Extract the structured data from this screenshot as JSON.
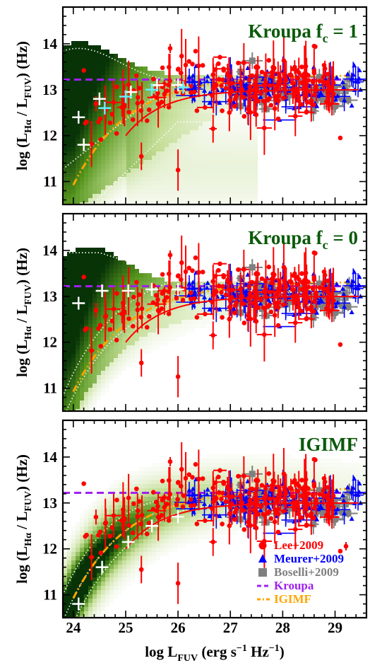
{
  "chart_data": [
    {
      "type": "scatter",
      "panel_label": "Kroupa f",
      "panel_label_sub": "c",
      "panel_label_tail": " = 1",
      "model": "kroupa1",
      "xlim": [
        23.8,
        29.6
      ],
      "ylim": [
        10.5,
        14.8
      ],
      "yticks": [
        11,
        12,
        13,
        14
      ],
      "ylabel": {
        "main": "log (L",
        "sub1": "Hα",
        "mid": " / L",
        "sub2": "FUV",
        "tail": ") (Hz)"
      },
      "grid": false
    },
    {
      "type": "scatter",
      "panel_label": "Kroupa f",
      "panel_label_sub": "c",
      "panel_label_tail": " = 0",
      "model": "kroupa0",
      "xlim": [
        23.8,
        29.6
      ],
      "ylim": [
        10.5,
        14.8
      ],
      "yticks": [
        11,
        12,
        13,
        14
      ],
      "ylabel": {
        "main": "log (L",
        "sub1": "Hα",
        "mid": " / L",
        "sub2": "FUV",
        "tail": ") (Hz)"
      },
      "grid": false
    },
    {
      "type": "scatter",
      "panel_label": "IGIMF",
      "panel_label_sub": "",
      "panel_label_tail": "",
      "model": "igimf",
      "xlim": [
        23.8,
        29.6
      ],
      "ylim": [
        10.5,
        14.8
      ],
      "yticks": [
        11,
        12,
        13,
        14
      ],
      "xticks": [
        24,
        25,
        26,
        27,
        28,
        29
      ],
      "ylabel": {
        "main": "log (L",
        "sub1": "Hα",
        "mid": " / L",
        "sub2": "FUV",
        "tail": ") (Hz)"
      },
      "xlabel": {
        "main": "log L",
        "sub": "FUV",
        "tail": " (erg s",
        "sup1": "−1",
        "tail2": " Hz",
        "sup2": "−1",
        "end": ")"
      },
      "legend_position": "lower-right",
      "grid": false
    }
  ],
  "series": {
    "kroupa_line": {
      "name": "Kroupa",
      "y": 13.22,
      "color": "#a020f0"
    },
    "igimf_line": {
      "name": "IGIMF",
      "color": "#ffa500"
    },
    "lee": {
      "name": "Lee+2009",
      "color": "#ff0000"
    },
    "meurer": {
      "name": "Meurer+2009",
      "color": "#0000ff"
    },
    "boselli": {
      "name": "Boselli+2009",
      "color": "#808080"
    }
  },
  "binned_points": {
    "kroupa1": {
      "white": [
        [
          24.1,
          12.4
        ],
        [
          24.5,
          12.8
        ],
        [
          25.1,
          12.95
        ],
        [
          25.6,
          13.1
        ],
        [
          26.0,
          13.1
        ],
        [
          24.2,
          11.8
        ]
      ],
      "cyan": [
        [
          24.6,
          12.6
        ],
        [
          25.0,
          12.85
        ],
        [
          25.5,
          13.0
        ],
        [
          26.1,
          13.05
        ]
      ]
    },
    "kroupa0": {
      "white": [
        [
          24.1,
          12.85
        ],
        [
          24.55,
          13.12
        ],
        [
          25.05,
          13.12
        ],
        [
          25.5,
          13.15
        ],
        [
          26.0,
          13.15
        ]
      ],
      "cyan": []
    },
    "igimf": {
      "white": [
        [
          24.1,
          10.8
        ],
        [
          24.55,
          11.6
        ],
        [
          25.05,
          12.15
        ],
        [
          25.5,
          12.5
        ],
        [
          26.0,
          12.7
        ]
      ],
      "cyan": []
    }
  },
  "legend": [
    {
      "label": "Lee+2009",
      "marker": "circle",
      "color": "#ff0000"
    },
    {
      "label": "Meurer+2009",
      "marker": "triangle",
      "color": "#0000ff"
    },
    {
      "label": "Boselli+2009",
      "marker": "square",
      "color": "#808080"
    },
    {
      "label": "Kroupa",
      "marker": "dash",
      "color": "#a020f0"
    },
    {
      "label": "IGIMF",
      "marker": "dashdot",
      "color": "#ffa500"
    }
  ],
  "colors": {
    "density_dark": "#003a00",
    "density_mid": "#2e7d10",
    "density_light": "#9bc850",
    "frame": "#000000"
  }
}
